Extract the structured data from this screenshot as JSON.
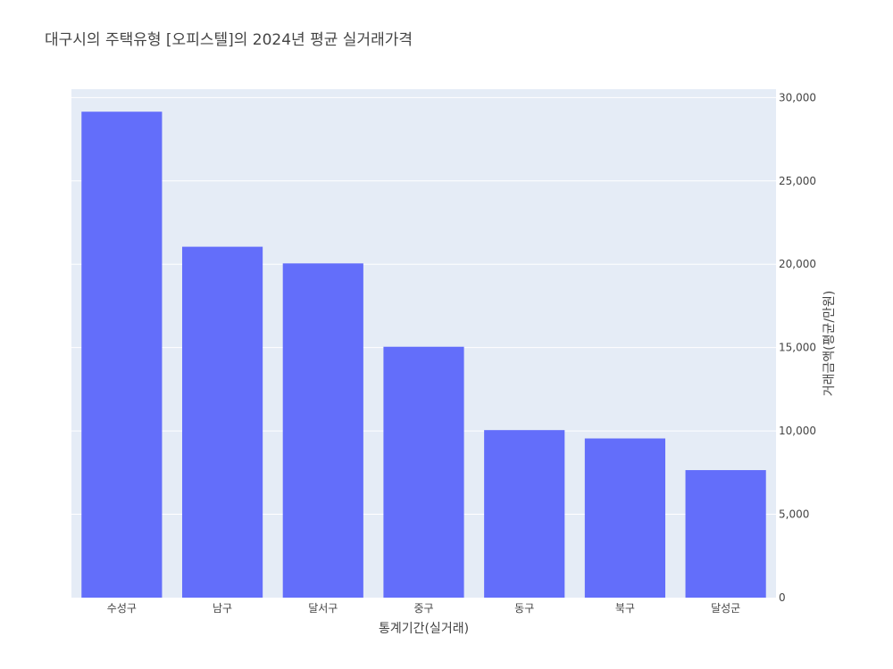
{
  "chart_data": {
    "type": "bar",
    "title": "대구시의 주택유형 [오피스텔]의 2024년 평균 실거래가격",
    "xlabel": "통계기간(실거래)",
    "ylabel": "거래금액(평균/만원)",
    "categories": [
      "수성구",
      "남구",
      "달서구",
      "중구",
      "동구",
      "북구",
      "달성군"
    ],
    "values": [
      29150,
      21050,
      20050,
      15050,
      10050,
      9550,
      7650
    ],
    "ylim": [
      0,
      30500
    ],
    "yticks": [
      0,
      5000,
      10000,
      15000,
      20000,
      25000,
      30000
    ],
    "ytick_labels": [
      "0",
      "5,000",
      "10,000",
      "15,000",
      "20,000",
      "25,000",
      "30,000"
    ],
    "yaxis_side": "right",
    "grid": true,
    "colors": {
      "bar": "#636efa",
      "plot_bg": "#e5ecf6",
      "grid": "#ffffff"
    }
  }
}
